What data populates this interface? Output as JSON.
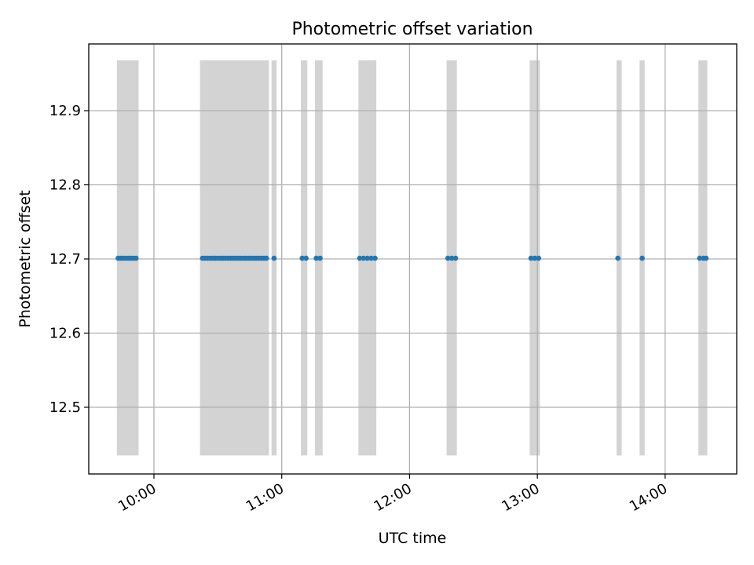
{
  "chart_data": {
    "type": "scatter",
    "title": "Photometric offset variation",
    "xlabel": "UTC time",
    "ylabel": "Photometric offset",
    "x_ticks": [
      "10:00",
      "11:00",
      "12:00",
      "13:00",
      "14:00"
    ],
    "x_tick_hours": [
      10,
      11,
      12,
      13,
      14
    ],
    "xlim_hours": [
      9.49,
      14.56
    ],
    "y_ticks": [
      "12.5",
      "12.6",
      "12.7",
      "12.8",
      "12.9"
    ],
    "y_tick_values": [
      12.5,
      12.6,
      12.7,
      12.8,
      12.9
    ],
    "ylim": [
      12.41,
      12.99
    ],
    "grid": true,
    "shaded_intervals_hours": [
      [
        9.71,
        9.88
      ],
      [
        10.36,
        10.9
      ],
      [
        10.92,
        10.96
      ],
      [
        11.15,
        11.2
      ],
      [
        11.26,
        11.32
      ],
      [
        11.6,
        11.74
      ],
      [
        12.29,
        12.37
      ],
      [
        12.94,
        13.02
      ],
      [
        13.62,
        13.66
      ],
      [
        13.8,
        13.84
      ],
      [
        14.26,
        14.33
      ]
    ],
    "shaded_range_y": [
      12.435,
      12.968
    ],
    "series": [
      {
        "y": 12.701,
        "x_hours": [
          9.72,
          9.74,
          9.76,
          9.78,
          9.8,
          9.82,
          9.84,
          9.86,
          10.38,
          10.4,
          10.42,
          10.44,
          10.46,
          10.48,
          10.5,
          10.52,
          10.54,
          10.56,
          10.58,
          10.6,
          10.62,
          10.64,
          10.66,
          10.68,
          10.7,
          10.72,
          10.74,
          10.76,
          10.78,
          10.8,
          10.82,
          10.84,
          10.86,
          10.88,
          10.94,
          11.16,
          11.19,
          11.27,
          11.3,
          11.61,
          11.64,
          11.67,
          11.7,
          11.73,
          12.3,
          12.33,
          12.36,
          12.95,
          12.98,
          13.01,
          13.63,
          13.82,
          14.27,
          14.3,
          14.32
        ]
      }
    ],
    "colors": {
      "points": "#1f77b4",
      "shading": "#d3d3d3",
      "grid": "#b0b0b0"
    }
  }
}
